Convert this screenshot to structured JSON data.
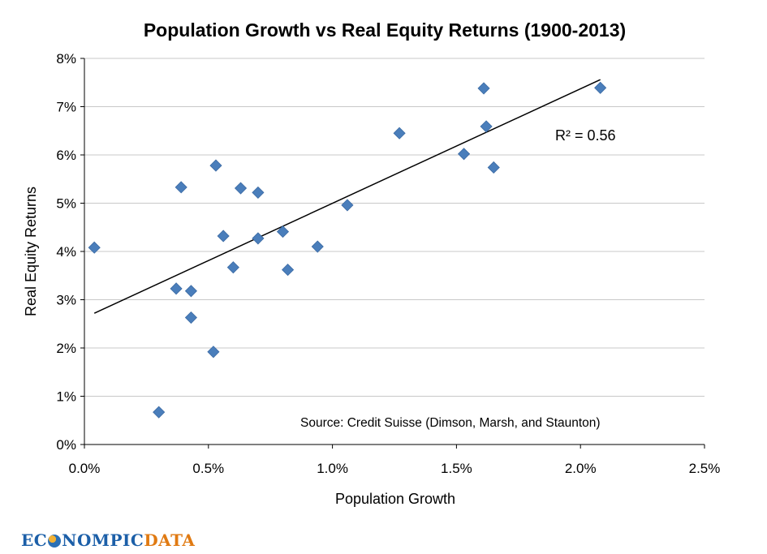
{
  "chart_data": {
    "type": "scatter",
    "title": "Population Growth vs Real Equity Returns (1900-2013)",
    "xlabel": "Population Growth",
    "ylabel": "Real Equity Returns",
    "xlim": [
      0,
      0.025
    ],
    "ylim": [
      0,
      0.08
    ],
    "x_ticks": [
      {
        "value": 0.0,
        "label": "0.0%"
      },
      {
        "value": 0.005,
        "label": "0.5%"
      },
      {
        "value": 0.01,
        "label": "1.0%"
      },
      {
        "value": 0.015,
        "label": "1.5%"
      },
      {
        "value": 0.02,
        "label": "2.0%"
      },
      {
        "value": 0.025,
        "label": "2.5%"
      }
    ],
    "y_ticks": [
      {
        "value": 0.0,
        "label": "0%"
      },
      {
        "value": 0.01,
        "label": "1%"
      },
      {
        "value": 0.02,
        "label": "2%"
      },
      {
        "value": 0.03,
        "label": "3%"
      },
      {
        "value": 0.04,
        "label": "4%"
      },
      {
        "value": 0.05,
        "label": "5%"
      },
      {
        "value": 0.06,
        "label": "6%"
      },
      {
        "value": 0.07,
        "label": "7%"
      },
      {
        "value": 0.08,
        "label": "8%"
      }
    ],
    "grid": "horizontal",
    "points": [
      {
        "x": 0.0004,
        "y": 0.0408
      },
      {
        "x": 0.003,
        "y": 0.0067
      },
      {
        "x": 0.0037,
        "y": 0.0323
      },
      {
        "x": 0.0039,
        "y": 0.0533
      },
      {
        "x": 0.0043,
        "y": 0.0318
      },
      {
        "x": 0.0043,
        "y": 0.0263
      },
      {
        "x": 0.0052,
        "y": 0.0192
      },
      {
        "x": 0.0053,
        "y": 0.0578
      },
      {
        "x": 0.0056,
        "y": 0.0432
      },
      {
        "x": 0.006,
        "y": 0.0367
      },
      {
        "x": 0.0063,
        "y": 0.0531
      },
      {
        "x": 0.007,
        "y": 0.0522
      },
      {
        "x": 0.007,
        "y": 0.0427
      },
      {
        "x": 0.008,
        "y": 0.0441
      },
      {
        "x": 0.0082,
        "y": 0.0362
      },
      {
        "x": 0.0094,
        "y": 0.041
      },
      {
        "x": 0.0106,
        "y": 0.0496
      },
      {
        "x": 0.0127,
        "y": 0.0645
      },
      {
        "x": 0.0153,
        "y": 0.0602
      },
      {
        "x": 0.0161,
        "y": 0.0738
      },
      {
        "x": 0.0162,
        "y": 0.0659
      },
      {
        "x": 0.0165,
        "y": 0.0574
      },
      {
        "x": 0.0208,
        "y": 0.0739
      }
    ],
    "trendline": {
      "type": "linear",
      "from": {
        "x": 0.0004,
        "y": 0.0272
      },
      "to": {
        "x": 0.0208,
        "y": 0.0756
      }
    },
    "annotations": {
      "r_squared": "R² = 0.56",
      "source": "Source: Credit Suisse (Dimson, Marsh, and Staunton)"
    },
    "marker_color": "#4a7ebb"
  },
  "branding": {
    "logo_prefix": "EC",
    "logo_middle": "NOMPIC",
    "logo_suffix": "DATA"
  }
}
